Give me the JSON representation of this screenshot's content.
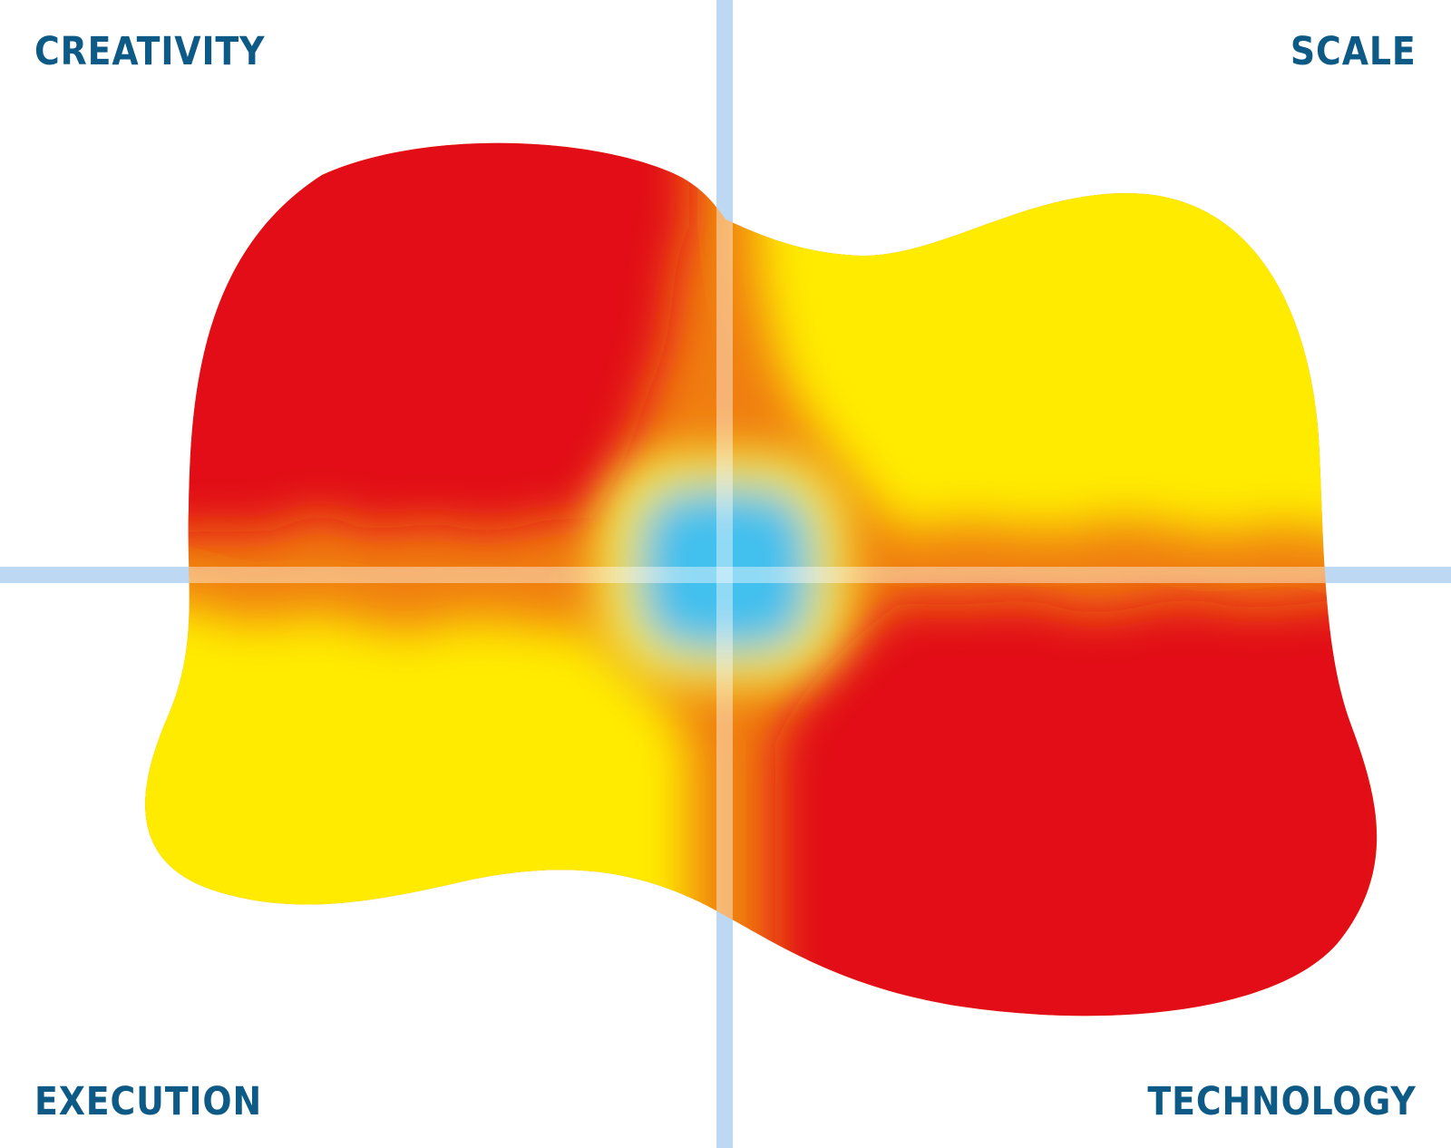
{
  "quadrants": {
    "top_left": "CREATIVITY",
    "top_right": "SCALE",
    "bottom_left": "EXECUTION",
    "bottom_right": "TECHNOLOGY"
  },
  "colors": {
    "label": "#0e5a86",
    "axis": "#bcd8f3",
    "axis_overlay": "#fbb879",
    "red": "#e20a16",
    "yellow": "#ffeb00",
    "center": "#43c0ee",
    "blend": "#f07d10"
  }
}
